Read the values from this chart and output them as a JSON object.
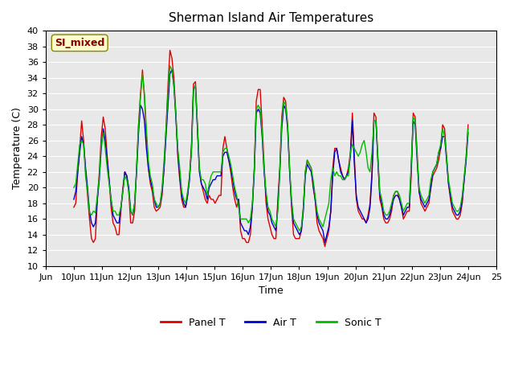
{
  "title": "Sherman Island Air Temperatures",
  "ylabel": "Temperature (C)",
  "xlabel": "Time",
  "annotation": "SI_mixed",
  "ylim": [
    10,
    40
  ],
  "yticks": [
    10,
    12,
    14,
    16,
    18,
    20,
    22,
    24,
    26,
    28,
    30,
    32,
    34,
    36,
    38,
    40
  ],
  "xtick_labels": [
    "Jun",
    "10Jun",
    "11Jun",
    "12Jun",
    "13Jun",
    "14Jun",
    "15Jun",
    "16Jun",
    "17Jun",
    "18Jun",
    "19Jun",
    "20Jun",
    "21Jun",
    "22Jun",
    "23Jun",
    "24Jun",
    "25"
  ],
  "xtick_positions": [
    0,
    1,
    2,
    3,
    4,
    5,
    6,
    7,
    8,
    9,
    10,
    11,
    12,
    13,
    14,
    15,
    16
  ],
  "xlim": [
    0,
    16
  ],
  "colors": {
    "panel_t": "#dd0000",
    "air_t": "#0000cc",
    "sonic_t": "#00bb00",
    "background": "#e8e8e8",
    "annotation_bg": "#ffffcc",
    "annotation_fg": "#880000"
  },
  "legend": [
    "Panel T",
    "Air T",
    "Sonic T"
  ],
  "panel_t": [
    17.5,
    18.0,
    22.0,
    25.0,
    28.5,
    26.0,
    22.0,
    19.0,
    16.0,
    13.5,
    13.0,
    13.5,
    18.5,
    22.0,
    26.5,
    29.0,
    27.5,
    24.0,
    21.0,
    17.5,
    15.5,
    15.0,
    14.0,
    14.0,
    17.0,
    20.0,
    22.0,
    21.5,
    19.5,
    15.5,
    15.5,
    17.0,
    22.5,
    28.0,
    32.0,
    35.0,
    31.5,
    26.5,
    22.5,
    20.5,
    19.5,
    17.5,
    17.0,
    17.2,
    17.5,
    19.0,
    22.5,
    27.5,
    33.0,
    37.5,
    36.5,
    34.0,
    29.5,
    24.0,
    21.0,
    18.5,
    17.5,
    17.5,
    19.0,
    21.5,
    25.5,
    33.2,
    33.5,
    28.0,
    22.5,
    20.5,
    19.5,
    18.5,
    18.0,
    19.0,
    18.5,
    18.5,
    18.0,
    18.5,
    19.0,
    19.0,
    25.0,
    26.5,
    25.0,
    23.5,
    22.0,
    20.0,
    18.5,
    17.5,
    18.5,
    14.5,
    13.5,
    13.5,
    13.0,
    13.0,
    14.0,
    17.5,
    22.5,
    31.0,
    32.5,
    32.5,
    28.0,
    23.0,
    18.0,
    16.0,
    15.0,
    14.0,
    13.5,
    13.5,
    18.5,
    22.5,
    29.0,
    31.5,
    31.0,
    28.0,
    22.5,
    17.5,
    14.0,
    13.5,
    13.5,
    13.5,
    14.5,
    17.5,
    22.0,
    23.5,
    23.0,
    22.5,
    20.0,
    18.5,
    15.5,
    14.5,
    14.0,
    13.5,
    12.5,
    13.5,
    14.5,
    17.0,
    22.5,
    25.0,
    25.0,
    23.5,
    22.5,
    21.5,
    21.0,
    21.5,
    22.5,
    24.5,
    29.5,
    24.0,
    18.5,
    17.0,
    16.5,
    16.0,
    16.0,
    15.5,
    16.5,
    18.0,
    22.0,
    29.5,
    29.0,
    23.5,
    18.5,
    17.5,
    16.0,
    15.5,
    15.5,
    16.0,
    17.0,
    19.0,
    19.5,
    19.5,
    18.5,
    17.5,
    16.0,
    16.5,
    17.0,
    17.0,
    21.5,
    29.5,
    29.0,
    24.5,
    19.5,
    18.0,
    17.5,
    17.0,
    17.5,
    18.0,
    20.0,
    21.5,
    22.0,
    22.5,
    23.5,
    25.0,
    28.0,
    27.5,
    24.0,
    20.5,
    18.5,
    17.0,
    16.5,
    16.0,
    16.0,
    16.5,
    18.0,
    21.0,
    24.0,
    28.0
  ],
  "air_t": [
    18.5,
    19.5,
    22.0,
    24.5,
    26.5,
    25.5,
    22.5,
    20.0,
    17.0,
    15.5,
    15.0,
    15.5,
    18.5,
    21.0,
    25.0,
    27.5,
    26.0,
    23.5,
    21.0,
    18.5,
    16.5,
    16.0,
    15.5,
    15.5,
    17.5,
    19.5,
    22.0,
    21.5,
    20.0,
    17.0,
    16.5,
    18.0,
    22.0,
    27.0,
    30.5,
    30.0,
    28.5,
    25.0,
    22.5,
    21.0,
    20.0,
    18.5,
    17.5,
    17.5,
    18.0,
    19.5,
    22.5,
    26.5,
    30.5,
    34.5,
    35.0,
    33.0,
    29.0,
    24.5,
    21.5,
    19.0,
    18.0,
    17.5,
    19.0,
    21.0,
    25.0,
    32.5,
    33.0,
    27.5,
    22.0,
    20.5,
    20.0,
    19.5,
    18.5,
    20.0,
    20.5,
    21.0,
    21.0,
    21.5,
    21.5,
    21.5,
    24.0,
    24.5,
    24.5,
    23.5,
    22.5,
    21.0,
    19.5,
    18.5,
    18.5,
    15.5,
    15.0,
    14.5,
    14.5,
    14.0,
    15.0,
    17.5,
    22.0,
    29.5,
    30.0,
    29.5,
    26.5,
    22.0,
    19.0,
    17.0,
    16.5,
    15.5,
    15.0,
    14.5,
    17.5,
    22.0,
    27.5,
    30.5,
    30.0,
    27.5,
    22.0,
    18.0,
    15.5,
    15.0,
    14.5,
    14.0,
    14.5,
    17.0,
    21.5,
    23.0,
    22.5,
    22.0,
    20.5,
    18.5,
    16.5,
    15.5,
    15.0,
    14.5,
    13.0,
    14.0,
    15.0,
    17.0,
    21.5,
    24.5,
    25.0,
    23.5,
    22.0,
    21.5,
    21.0,
    21.5,
    22.0,
    24.0,
    28.5,
    23.0,
    19.0,
    17.5,
    17.0,
    16.5,
    16.0,
    15.5,
    16.0,
    17.5,
    21.5,
    28.5,
    28.5,
    23.5,
    19.0,
    18.0,
    16.5,
    16.0,
    16.0,
    16.5,
    17.5,
    18.5,
    19.0,
    19.0,
    18.5,
    17.5,
    16.5,
    17.0,
    17.5,
    17.5,
    22.5,
    28.5,
    28.0,
    23.5,
    19.5,
    18.5,
    18.0,
    17.5,
    18.0,
    18.5,
    20.0,
    22.0,
    22.5,
    23.0,
    24.5,
    25.0,
    26.5,
    26.5,
    23.5,
    20.5,
    19.0,
    17.5,
    17.0,
    16.5,
    16.5,
    17.0,
    18.5,
    21.0,
    23.5,
    27.0
  ],
  "sonic_t": [
    20.0,
    20.5,
    23.0,
    25.5,
    26.0,
    25.5,
    21.5,
    19.5,
    16.8,
    16.5,
    17.0,
    16.8,
    19.0,
    21.5,
    25.5,
    27.0,
    25.0,
    22.5,
    20.5,
    18.5,
    17.0,
    17.0,
    16.5,
    16.5,
    17.5,
    19.5,
    21.5,
    21.0,
    19.5,
    17.0,
    16.5,
    18.0,
    22.5,
    28.0,
    31.5,
    34.5,
    32.0,
    27.5,
    23.5,
    21.5,
    20.5,
    18.5,
    18.0,
    17.5,
    18.0,
    20.0,
    23.5,
    27.5,
    32.0,
    35.5,
    35.0,
    33.0,
    29.5,
    25.0,
    22.5,
    19.5,
    18.5,
    18.0,
    19.5,
    21.5,
    24.5,
    32.5,
    33.0,
    28.0,
    22.5,
    21.0,
    21.0,
    20.5,
    19.0,
    20.5,
    21.5,
    22.0,
    22.0,
    22.0,
    22.0,
    22.0,
    24.5,
    25.0,
    25.0,
    24.0,
    23.0,
    21.5,
    20.0,
    19.0,
    17.5,
    16.0,
    16.0,
    16.0,
    16.0,
    15.5,
    16.0,
    18.0,
    22.5,
    30.0,
    30.5,
    30.0,
    27.0,
    22.5,
    19.5,
    17.5,
    17.0,
    16.0,
    15.5,
    15.0,
    17.0,
    22.0,
    28.5,
    31.0,
    30.5,
    28.0,
    22.5,
    18.5,
    16.0,
    15.5,
    15.0,
    14.5,
    15.0,
    17.5,
    22.0,
    23.5,
    23.0,
    22.5,
    21.0,
    19.0,
    17.0,
    16.0,
    15.5,
    15.0,
    16.0,
    17.0,
    18.0,
    21.0,
    22.5,
    21.5,
    22.0,
    21.5,
    21.5,
    21.0,
    21.0,
    21.5,
    21.5,
    24.5,
    25.5,
    25.0,
    24.5,
    24.0,
    24.5,
    25.5,
    26.0,
    24.5,
    22.5,
    22.0,
    24.5,
    28.5,
    28.5,
    24.0,
    19.5,
    18.5,
    17.0,
    16.5,
    16.5,
    17.0,
    18.0,
    19.0,
    19.5,
    19.5,
    19.0,
    18.0,
    17.0,
    17.5,
    18.0,
    18.0,
    23.0,
    29.0,
    28.5,
    24.0,
    20.0,
    19.0,
    18.5,
    18.0,
    18.5,
    19.0,
    21.0,
    22.0,
    22.5,
    23.0,
    24.5,
    25.5,
    27.5,
    26.5,
    24.0,
    21.0,
    19.5,
    18.0,
    17.5,
    17.0,
    17.0,
    17.5,
    19.0,
    21.5,
    24.0,
    27.5
  ]
}
